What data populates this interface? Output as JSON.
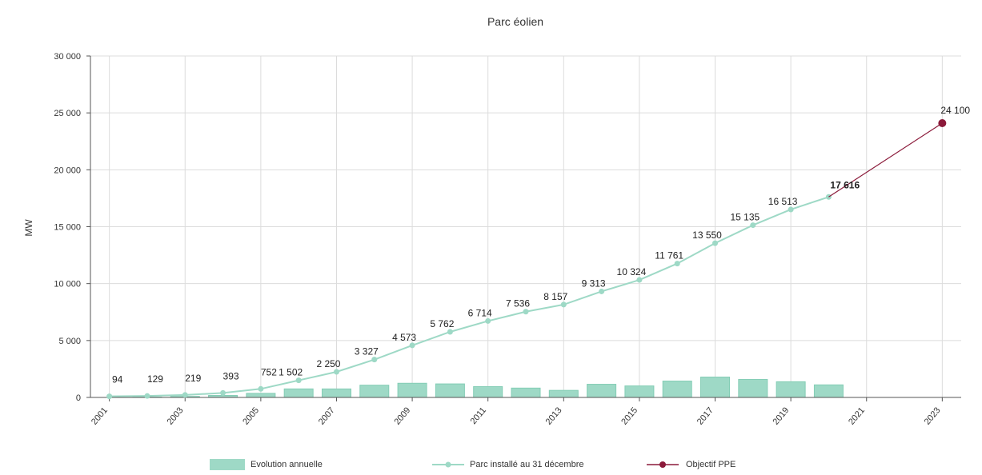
{
  "chart_data": {
    "type": "bar",
    "title": "Parc éolien",
    "ylabel": "MW",
    "xlabel": "",
    "ylim": [
      0,
      30000
    ],
    "yticks": [
      0,
      5000,
      10000,
      15000,
      20000,
      25000,
      30000
    ],
    "ytick_labels": [
      "0",
      "5 000",
      "10 000",
      "15 000",
      "20 000",
      "25 000",
      "30 000"
    ],
    "xlim": [
      2001,
      2023
    ],
    "xticks": [
      2001,
      2003,
      2005,
      2007,
      2009,
      2011,
      2013,
      2015,
      2017,
      2019,
      2021,
      2023
    ],
    "xtick_labels": [
      "2001",
      "2003",
      "2005",
      "2007",
      "2009",
      "2011",
      "2013",
      "2015",
      "2017",
      "2019",
      "2021",
      "2023"
    ],
    "grid": true,
    "legend_position": "bottom",
    "series": [
      {
        "name": "Evolution annuelle",
        "type": "bar",
        "color": "#9ed9c6",
        "x": [
          2002,
          2003,
          2004,
          2005,
          2006,
          2007,
          2008,
          2009,
          2010,
          2011,
          2012,
          2013,
          2014,
          2015,
          2016,
          2017,
          2018,
          2019,
          2020
        ],
        "values": [
          35,
          90,
          174,
          359,
          750,
          748,
          1077,
          1246,
          1189,
          952,
          822,
          621,
          1156,
          1011,
          1437,
          1789,
          1585,
          1378,
          1105
        ]
      },
      {
        "name": "Parc installé au 31 décembre",
        "type": "line",
        "color": "#9ed9c6",
        "x": [
          2001,
          2002,
          2003,
          2004,
          2005,
          2006,
          2007,
          2008,
          2009,
          2010,
          2011,
          2012,
          2013,
          2014,
          2015,
          2016,
          2017,
          2018,
          2019,
          2020
        ],
        "values": [
          94,
          129,
          219,
          393,
          752,
          1502,
          2250,
          3327,
          4573,
          5762,
          6714,
          7536,
          8157,
          9313,
          10324,
          11761,
          13550,
          15135,
          16513,
          17616
        ],
        "labels": [
          "94",
          "129",
          "219",
          "393",
          "752",
          "1 502",
          "2 250",
          "3 327",
          "4 573",
          "5 762",
          "6 714",
          "7 536",
          "8 157",
          "9 313",
          "10 324",
          "11 761",
          "13 550",
          "15 135",
          "16 513",
          "17 616"
        ]
      },
      {
        "name": "Objectif PPE",
        "type": "line",
        "color": "#8b1a3a",
        "x": [
          2020,
          2023
        ],
        "values": [
          17616,
          24100
        ],
        "labels": [
          "",
          "24 100"
        ]
      }
    ]
  }
}
